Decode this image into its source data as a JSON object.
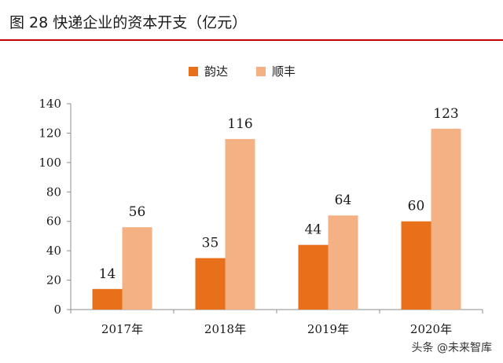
{
  "header": {
    "title": "图 28  快递企业的资本开支（亿元）"
  },
  "watermark": "头条 @未来智库",
  "chart_data": {
    "type": "bar",
    "title": "图 28  快递企业的资本开支（亿元）",
    "categories": [
      "2017年",
      "2018年",
      "2019年",
      "2020年"
    ],
    "series": [
      {
        "name": "韵达",
        "values": [
          14,
          35,
          44,
          60
        ],
        "color": "#e8701a"
      },
      {
        "name": "顺丰",
        "values": [
          56,
          116,
          64,
          123
        ],
        "color": "#f4b183"
      }
    ],
    "ylim": [
      0,
      140
    ],
    "yticks": [
      0,
      20,
      40,
      60,
      80,
      100,
      120,
      140
    ],
    "grid": false,
    "legend": "top-center"
  }
}
